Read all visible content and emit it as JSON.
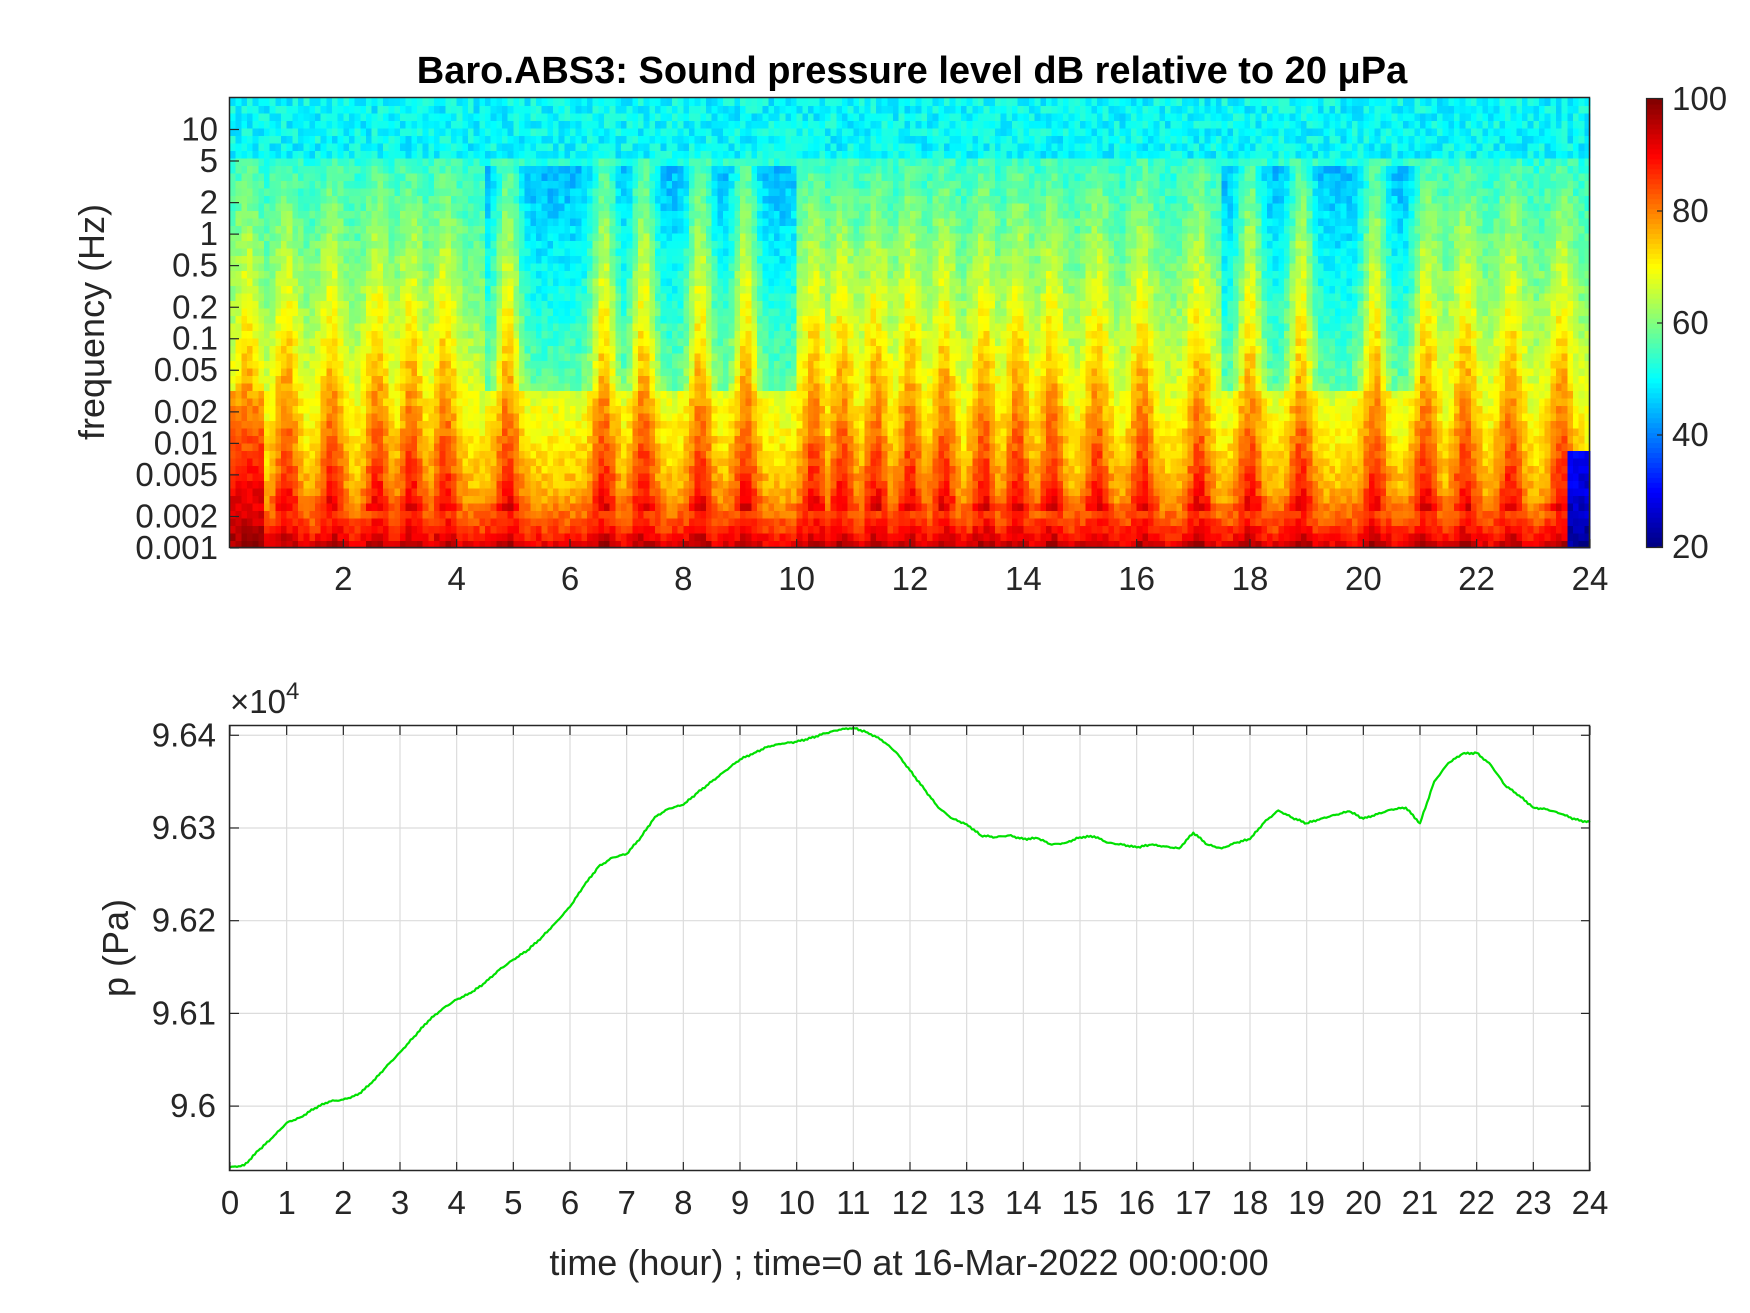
{
  "chart_data": [
    {
      "type": "heatmap",
      "title": "Baro.ABS3: Sound pressure level dB relative to 20 μPa",
      "xlabel": "",
      "ylabel": "frequency (Hz)",
      "x_ticks": [
        2,
        4,
        6,
        8,
        10,
        12,
        14,
        16,
        18,
        20,
        22,
        24
      ],
      "x_tick_labels": [
        "2",
        "4",
        "6",
        "8",
        "10",
        "12",
        "14",
        "16",
        "18",
        "20",
        "22",
        "24"
      ],
      "xlim": [
        0,
        24
      ],
      "y_scale": "log",
      "ylim": [
        0.001,
        20
      ],
      "y_ticks": [
        0.001,
        0.002,
        0.005,
        0.01,
        0.02,
        0.05,
        0.1,
        0.2,
        0.5,
        1,
        2,
        5,
        10
      ],
      "y_tick_labels": [
        "0.001",
        "0.002",
        "0.005",
        "0.01",
        "0.02",
        "0.05",
        "0.1",
        "0.2",
        "0.5",
        "1",
        "2",
        "5",
        "10"
      ],
      "colormap": "jet",
      "colorbar": {
        "range": [
          20,
          100
        ],
        "ticks": [
          20,
          40,
          60,
          80,
          100
        ],
        "tick_labels": [
          "20",
          "40",
          "60",
          "80",
          "100"
        ],
        "placement": "right"
      },
      "level_profile": {
        "description_units": "dB",
        "low_freq_base_db": 88,
        "high_freq_base_db": 50,
        "burst_hours": [
          0.3,
          1.0,
          1.8,
          2.6,
          3.2,
          3.8,
          4.9,
          6.6,
          7.3,
          8.3,
          9.1,
          10.3,
          10.8,
          11.4,
          12.0,
          12.6,
          13.3,
          13.9,
          14.5,
          15.3,
          16.1,
          17.1,
          18.0,
          18.9,
          20.2,
          21.1,
          21.8,
          22.6,
          23.5
        ],
        "quiet_hours": [
          [
            4.5,
            10.0
          ],
          [
            17.5,
            21.0
          ]
        ]
      }
    },
    {
      "type": "line",
      "title": "",
      "xlabel": "time (hour) ; time=0 at 16-Mar-2022 00:00:00",
      "ylabel": "p (Pa)",
      "y_multiplier": "×10",
      "y_multiplier_exponent": "4",
      "xlim": [
        0,
        24
      ],
      "ylim": [
        9.593,
        9.641
      ],
      "x_ticks": [
        0,
        1,
        2,
        3,
        4,
        5,
        6,
        7,
        8,
        9,
        10,
        11,
        12,
        13,
        14,
        15,
        16,
        17,
        18,
        19,
        20,
        21,
        22,
        23,
        24
      ],
      "x_tick_labels": [
        "0",
        "1",
        "2",
        "3",
        "4",
        "5",
        "6",
        "7",
        "8",
        "9",
        "10",
        "11",
        "12",
        "13",
        "14",
        "15",
        "16",
        "17",
        "18",
        "19",
        "20",
        "21",
        "22",
        "23",
        "24"
      ],
      "y_ticks": [
        9.6,
        9.61,
        9.62,
        9.63,
        9.64
      ],
      "y_tick_labels": [
        "9.6",
        "9.61",
        "9.62",
        "9.63",
        "9.64"
      ],
      "grid": true,
      "line_color": "#00e000",
      "series": [
        {
          "x": [
            0,
            0.25,
            0.5,
            0.75,
            1.0,
            1.25,
            1.5,
            1.75,
            2.0,
            2.25,
            2.5,
            2.75,
            3.0,
            3.25,
            3.5,
            3.75,
            4.0,
            4.25,
            4.5,
            4.75,
            5.0,
            5.25,
            5.5,
            5.75,
            6.0,
            6.25,
            6.5,
            6.75,
            7.0,
            7.25,
            7.5,
            7.75,
            8.0,
            8.25,
            8.5,
            8.75,
            9.0,
            9.25,
            9.5,
            9.75,
            10.0,
            10.25,
            10.5,
            10.75,
            11.0,
            11.25,
            11.5,
            11.75,
            12.0,
            12.25,
            12.5,
            12.75,
            13.0,
            13.25,
            13.5,
            13.75,
            14.0,
            14.25,
            14.5,
            14.75,
            15.0,
            15.25,
            15.5,
            15.75,
            16.0,
            16.25,
            16.5,
            16.75,
            17.0,
            17.25,
            17.5,
            17.75,
            18.0,
            18.25,
            18.5,
            18.75,
            19.0,
            19.25,
            19.5,
            19.75,
            20.0,
            20.25,
            20.5,
            20.75,
            21.0,
            21.25,
            21.5,
            21.75,
            22.0,
            22.25,
            22.5,
            22.75,
            23.0,
            23.25,
            23.5,
            23.75,
            24.0
          ],
          "y": [
            9.5934,
            9.5936,
            9.5952,
            9.5966,
            9.5982,
            9.5988,
            9.5998,
            9.6005,
            9.6007,
            9.6012,
            9.6025,
            9.6042,
            9.6058,
            9.6075,
            9.6092,
            9.6105,
            9.6115,
            9.6122,
            9.6133,
            9.6147,
            9.6158,
            9.6168,
            9.6182,
            9.6198,
            9.6215,
            9.6238,
            9.6258,
            9.6268,
            9.6272,
            9.629,
            9.6312,
            9.6321,
            9.6325,
            9.6338,
            9.635,
            9.6362,
            9.6374,
            9.6381,
            9.6388,
            9.6391,
            9.6393,
            9.6397,
            9.6402,
            9.6406,
            9.6408,
            9.6403,
            9.6395,
            9.6382,
            9.6362,
            9.6342,
            9.6322,
            9.631,
            9.6304,
            9.6292,
            9.629,
            9.6292,
            9.6288,
            9.6289,
            9.6282,
            9.6284,
            9.629,
            9.6291,
            9.6284,
            9.6282,
            9.6279,
            9.6282,
            9.628,
            9.6278,
            9.6295,
            9.6282,
            9.6278,
            9.6284,
            9.6288,
            9.6306,
            9.6319,
            9.6311,
            9.6305,
            9.631,
            9.6314,
            9.6318,
            9.631,
            9.6315,
            9.632,
            9.6322,
            9.6305,
            9.635,
            9.637,
            9.638,
            9.6381,
            9.6368,
            9.6346,
            9.6335,
            9.6322,
            9.632,
            9.6315,
            9.6309,
            9.6306
          ]
        }
      ]
    }
  ]
}
